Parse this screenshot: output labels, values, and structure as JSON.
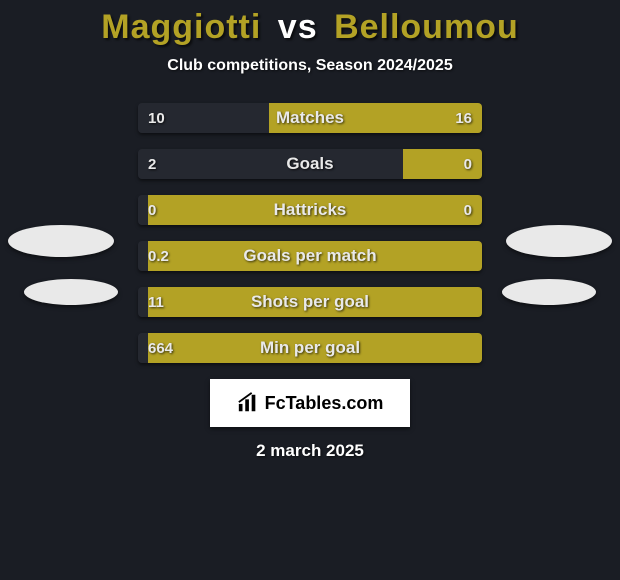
{
  "background_color": "#1a1d24",
  "title": {
    "player1": "Maggiotti",
    "vs": "vs",
    "player2": "Belloumou",
    "player1_color": "#b3a225",
    "vs_color": "#ffffff",
    "player2_color": "#b3a225"
  },
  "subtitle": "Club competitions, Season 2024/2025",
  "colors": {
    "left_bar": "#252830",
    "right_bar": "#b3a225",
    "oval": "#e9e9e9"
  },
  "stats": [
    {
      "label": "Matches",
      "left_val": "10",
      "right_val": "16",
      "left_pct": 38,
      "right_pct": 62
    },
    {
      "label": "Goals",
      "left_val": "2",
      "right_val": "0",
      "left_pct": 77,
      "right_pct": 23
    },
    {
      "label": "Hattricks",
      "left_val": "0",
      "right_val": "0",
      "left_pct": 3,
      "right_pct": 97
    },
    {
      "label": "Goals per match",
      "left_val": "0.2",
      "right_val": "",
      "left_pct": 3,
      "right_pct": 97
    },
    {
      "label": "Shots per goal",
      "left_val": "11",
      "right_val": "",
      "left_pct": 3,
      "right_pct": 97
    },
    {
      "label": "Min per goal",
      "left_val": "664",
      "right_val": "",
      "left_pct": 3,
      "right_pct": 97
    }
  ],
  "logo_text": "FcTables.com",
  "date": "2 march 2025"
}
